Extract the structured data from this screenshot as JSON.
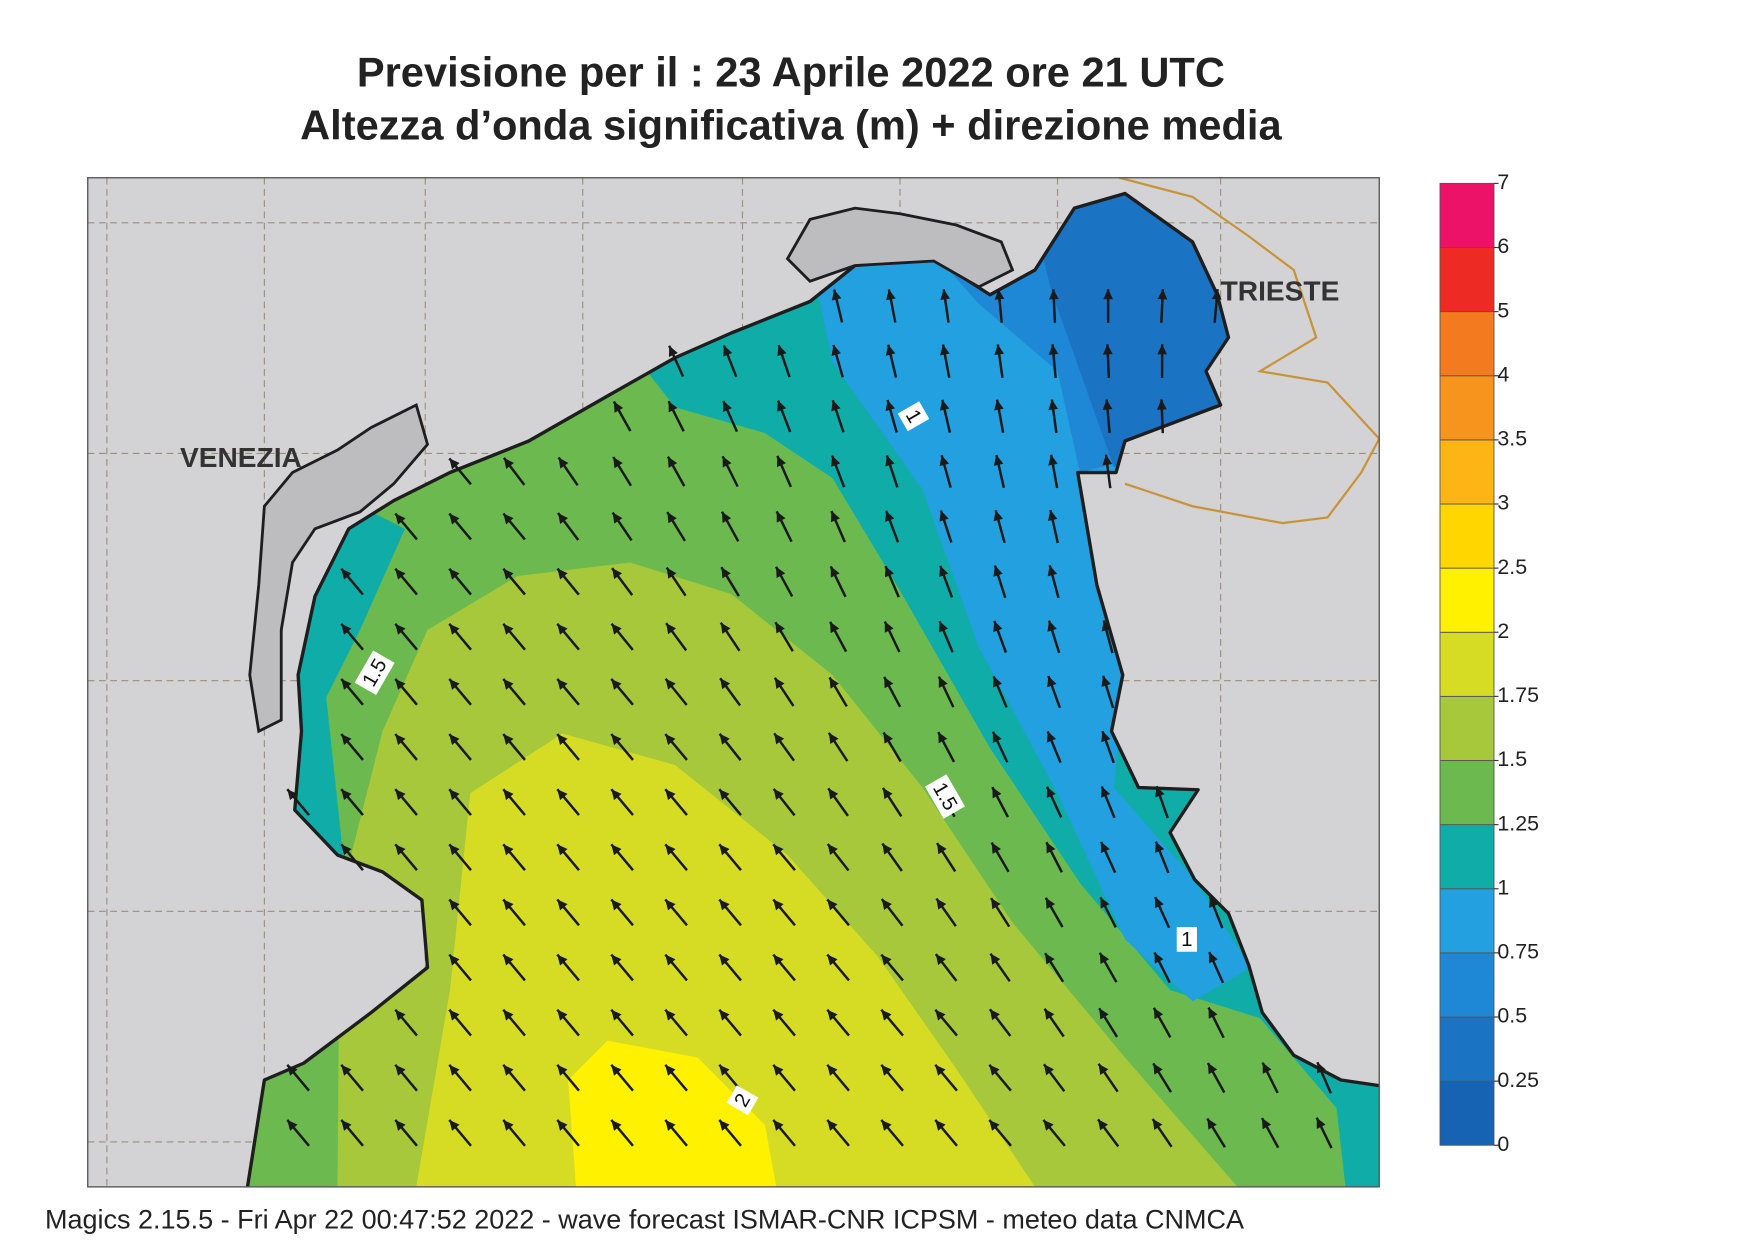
{
  "title": [
    "Previsione per il  :  23   Aprile  2022   ore 21 UTC",
    "Altezza d’onda significativa (m) + direzione media"
  ],
  "places": [
    "VENEZIA",
    "TRIESTE"
  ],
  "contour_labels": [
    1,
    1.5,
    1.5,
    1,
    2
  ],
  "colorbar": {
    "ticks": [
      0,
      0.25,
      0.5,
      0.75,
      1,
      1.25,
      1.5,
      1.75,
      2,
      2.5,
      3,
      3.5,
      4,
      5,
      6,
      7
    ],
    "colors": [
      "#1563b2",
      "#1a74c3",
      "#1e88d6",
      "#22a0e0",
      "#10ada8",
      "#6cb94f",
      "#a6c83a",
      "#d6dc24",
      "#fff100",
      "#ffd600",
      "#fdb515",
      "#f7941d",
      "#f47a20",
      "#ee2a24",
      "#ec1267"
    ]
  },
  "footer": "Magics 2.15.5 - Fri Apr 22 00:47:52 2022 - wave forecast  ISMAR-CNR  ICPSM - meteo data   CNMCA"
}
